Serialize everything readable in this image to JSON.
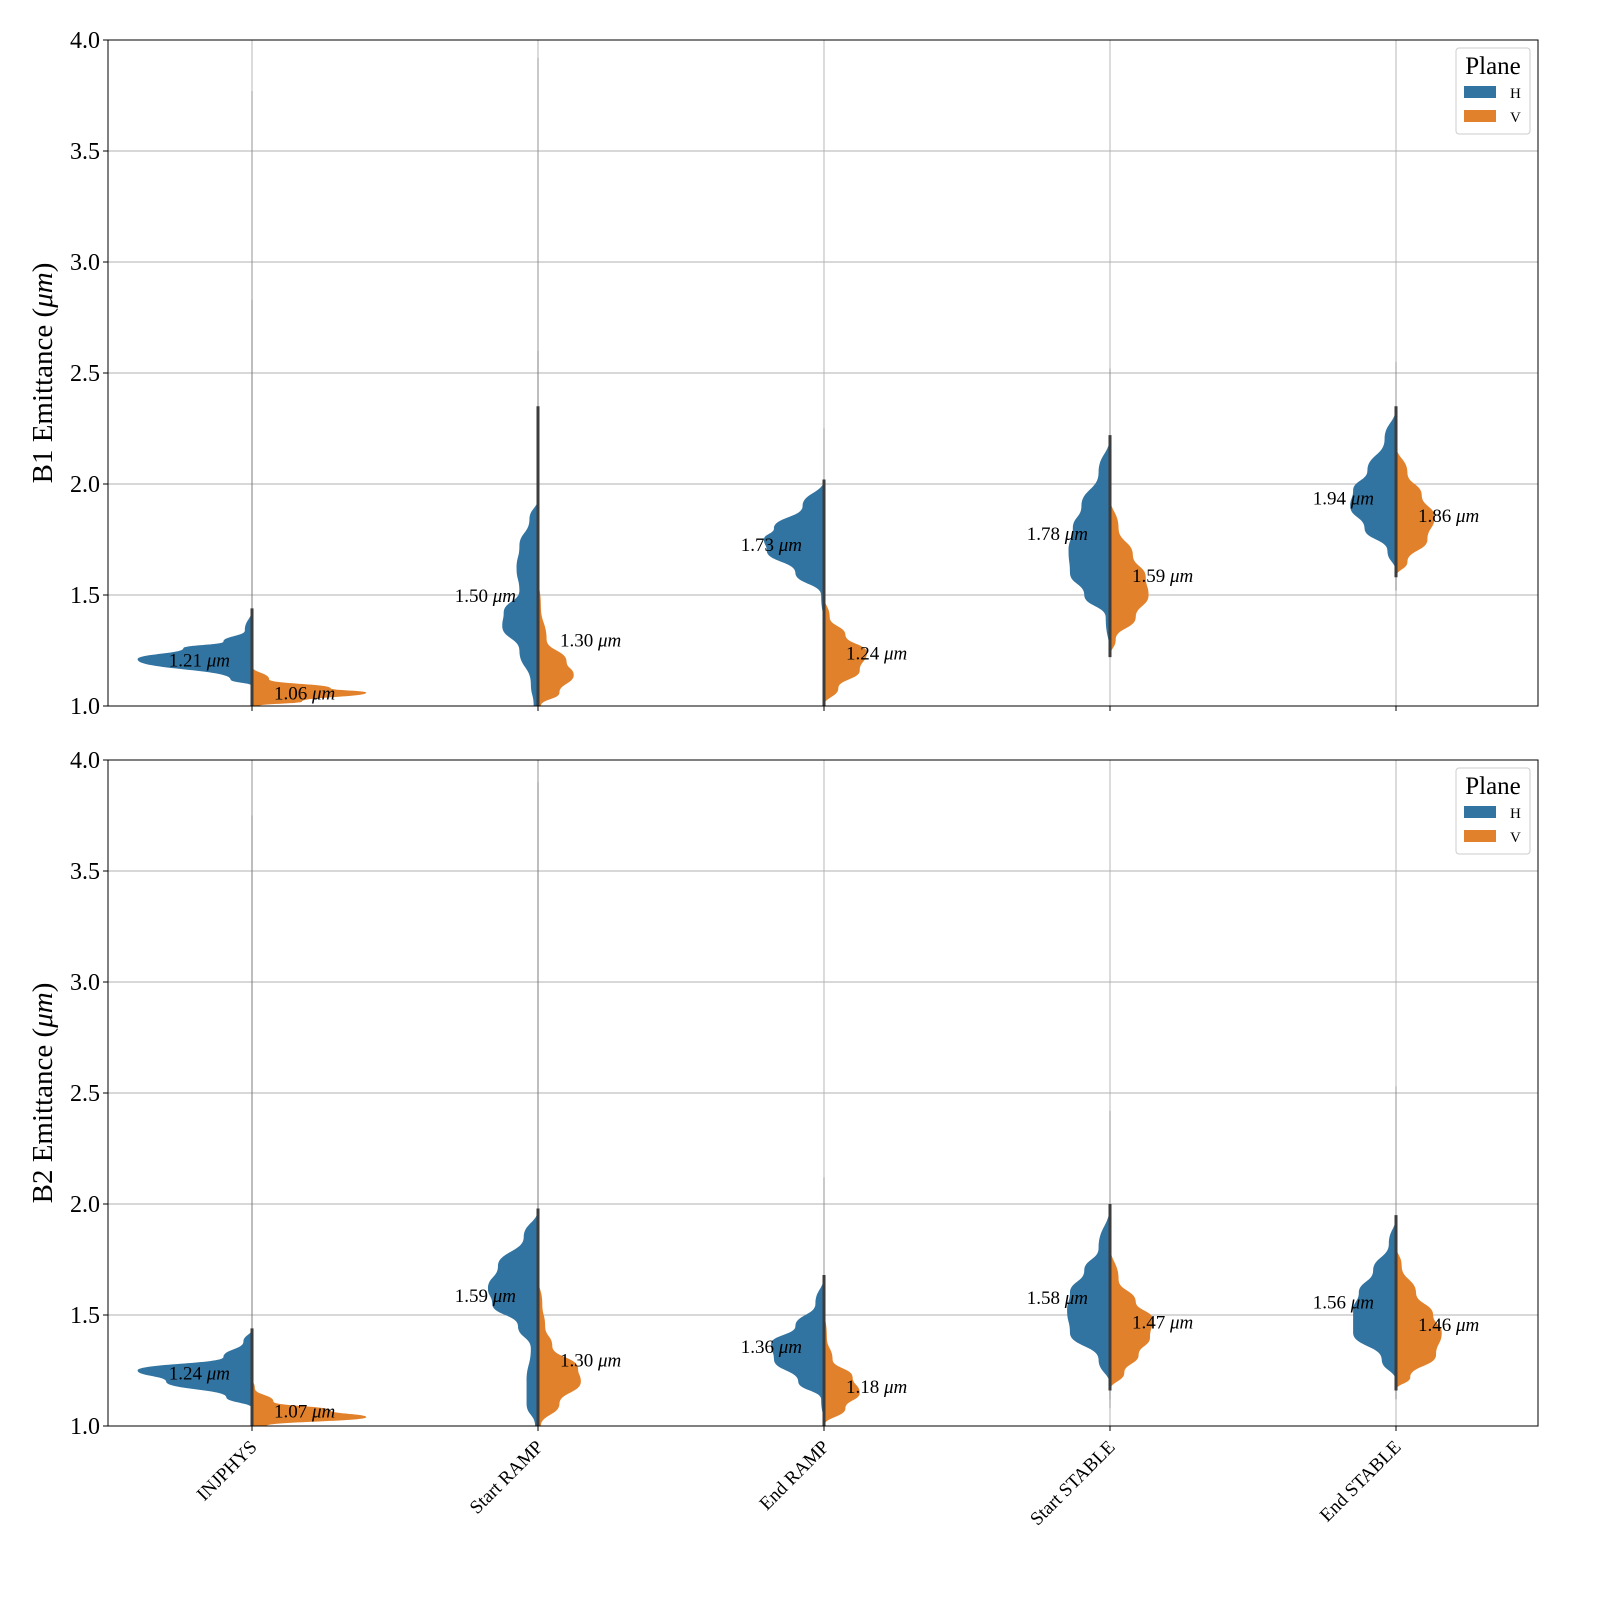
{
  "chart_data": [
    {
      "type": "violin",
      "subtype": "split-violin",
      "ylabel_prefix": "B1 Emittance",
      "ylabel_unit": "μm",
      "ylim": [
        1.0,
        4.0
      ],
      "yticks": [
        "1.0",
        "1.5",
        "2.0",
        "2.5",
        "3.0",
        "3.5",
        "4.0"
      ],
      "ytick_values": [
        1.0,
        1.5,
        2.0,
        2.5,
        3.0,
        3.5,
        4.0
      ],
      "grid": true,
      "categories": [
        "INJPHYS",
        "Start RAMP",
        "End RAMP",
        "Start STABLE",
        "End STABLE"
      ],
      "show_xtick_labels": false,
      "legend": {
        "title": "Plane",
        "placement": "top-right",
        "entries": [
          "H",
          "V"
        ]
      },
      "series": [
        {
          "name": "H",
          "color": "#3274a1",
          "medians": [
            1.21,
            1.5,
            1.73,
            1.78,
            1.94
          ],
          "annotations": [
            "1.21 μm",
            "1.50 μm",
            "1.73 μm",
            "1.78 μm",
            "1.94 μm"
          ],
          "ranges": [
            [
              1.0,
              3.77
            ],
            [
              1.0,
              3.92
            ],
            [
              1.0,
              2.25
            ],
            [
              1.22,
              2.52
            ],
            [
              1.52,
              2.55
            ]
          ],
          "density": [
            [
              [
                1.0,
                0.0
              ],
              [
                1.09,
                0.0
              ],
              [
                1.12,
                0.15
              ],
              [
                1.21,
                0.8
              ],
              [
                1.26,
                0.48
              ],
              [
                1.29,
                0.2
              ],
              [
                1.34,
                0.05
              ],
              [
                1.44,
                0.0
              ]
            ],
            [
              [
                1.0,
                0.03
              ],
              [
                1.1,
                0.05
              ],
              [
                1.25,
                0.13
              ],
              [
                1.36,
                0.25
              ],
              [
                1.42,
                0.24
              ],
              [
                1.52,
                0.13
              ],
              [
                1.62,
                0.15
              ],
              [
                1.72,
                0.13
              ],
              [
                1.84,
                0.06
              ],
              [
                1.94,
                0.0
              ]
            ],
            [
              [
                1.35,
                0.0
              ],
              [
                1.5,
                0.02
              ],
              [
                1.6,
                0.2
              ],
              [
                1.7,
                0.4
              ],
              [
                1.75,
                0.42
              ],
              [
                1.8,
                0.35
              ],
              [
                1.9,
                0.15
              ],
              [
                2.02,
                0.0
              ]
            ],
            [
              [
                1.22,
                0.0
              ],
              [
                1.4,
                0.03
              ],
              [
                1.5,
                0.18
              ],
              [
                1.6,
                0.28
              ],
              [
                1.7,
                0.29
              ],
              [
                1.8,
                0.26
              ],
              [
                1.9,
                0.2
              ],
              [
                2.05,
                0.08
              ],
              [
                2.22,
                0.0
              ]
            ],
            [
              [
                1.6,
                0.0
              ],
              [
                1.7,
                0.06
              ],
              [
                1.8,
                0.22
              ],
              [
                1.9,
                0.32
              ],
              [
                1.97,
                0.3
              ],
              [
                2.06,
                0.2
              ],
              [
                2.2,
                0.08
              ],
              [
                2.35,
                0.0
              ]
            ]
          ]
        },
        {
          "name": "V",
          "color": "#e1812c",
          "medians": [
            1.06,
            1.3,
            1.24,
            1.59,
            1.86
          ],
          "annotations": [
            "1.06 μm",
            "1.30 μm",
            "1.24 μm",
            "1.59 μm",
            "1.86 μm"
          ],
          "ranges": [
            [
              1.0,
              2.83
            ],
            [
              1.0,
              2.6
            ],
            [
              1.0,
              1.5
            ],
            [
              1.22,
              2.0
            ],
            [
              1.52,
              2.2
            ]
          ],
          "density": [
            [
              [
                1.0,
                0.05
              ],
              [
                1.02,
                0.35
              ],
              [
                1.06,
                0.8
              ],
              [
                1.08,
                0.55
              ],
              [
                1.12,
                0.12
              ],
              [
                1.18,
                0.0
              ]
            ],
            [
              [
                1.0,
                0.02
              ],
              [
                1.06,
                0.15
              ],
              [
                1.14,
                0.25
              ],
              [
                1.2,
                0.2
              ],
              [
                1.3,
                0.06
              ],
              [
                1.45,
                0.02
              ],
              [
                1.6,
                0.0
              ],
              [
                2.0,
                0.01
              ],
              [
                2.35,
                0.0
              ]
            ],
            [
              [
                1.0,
                0.0
              ],
              [
                1.08,
                0.1
              ],
              [
                1.16,
                0.25
              ],
              [
                1.24,
                0.3
              ],
              [
                1.32,
                0.15
              ],
              [
                1.4,
                0.04
              ],
              [
                1.5,
                0.0
              ]
            ],
            [
              [
                1.22,
                0.0
              ],
              [
                1.3,
                0.04
              ],
              [
                1.4,
                0.18
              ],
              [
                1.5,
                0.27
              ],
              [
                1.58,
                0.25
              ],
              [
                1.68,
                0.16
              ],
              [
                1.8,
                0.06
              ],
              [
                1.95,
                0.0
              ]
            ],
            [
              [
                1.58,
                0.0
              ],
              [
                1.65,
                0.08
              ],
              [
                1.75,
                0.22
              ],
              [
                1.85,
                0.27
              ],
              [
                1.95,
                0.18
              ],
              [
                2.05,
                0.08
              ],
              [
                2.18,
                0.0
              ]
            ]
          ]
        }
      ]
    },
    {
      "type": "violin",
      "subtype": "split-violin",
      "ylabel_prefix": "B2 Emittance",
      "ylabel_unit": "μm",
      "ylim": [
        1.0,
        4.0
      ],
      "yticks": [
        "1.0",
        "1.5",
        "2.0",
        "2.5",
        "3.0",
        "3.5",
        "4.0"
      ],
      "ytick_values": [
        1.0,
        1.5,
        2.0,
        2.5,
        3.0,
        3.5,
        4.0
      ],
      "grid": true,
      "categories": [
        "INJPHYS",
        "Start RAMP",
        "End RAMP",
        "Start STABLE",
        "End STABLE"
      ],
      "show_xtick_labels": true,
      "legend": {
        "title": "Plane",
        "placement": "top-right",
        "entries": [
          "H",
          "V"
        ]
      },
      "series": [
        {
          "name": "H",
          "color": "#3274a1",
          "medians": [
            1.24,
            1.59,
            1.36,
            1.58,
            1.56
          ],
          "annotations": [
            "1.24 μm",
            "1.59 μm",
            "1.36 μm",
            "1.58 μm",
            "1.56 μm"
          ],
          "ranges": [
            [
              1.0,
              4.0
            ],
            [
              1.0,
              4.0
            ],
            [
              1.0,
              2.12
            ],
            [
              1.08,
              2.42
            ],
            [
              1.12,
              2.53
            ]
          ],
          "density": [
            [
              [
                1.0,
                0.0
              ],
              [
                1.08,
                0.0
              ],
              [
                1.13,
                0.18
              ],
              [
                1.2,
                0.6
              ],
              [
                1.25,
                0.8
              ],
              [
                1.31,
                0.2
              ],
              [
                1.38,
                0.06
              ],
              [
                1.44,
                0.0
              ]
            ],
            [
              [
                1.0,
                0.02
              ],
              [
                1.1,
                0.08
              ],
              [
                1.2,
                0.08
              ],
              [
                1.35,
                0.05
              ],
              [
                1.45,
                0.14
              ],
              [
                1.55,
                0.32
              ],
              [
                1.62,
                0.35
              ],
              [
                1.72,
                0.28
              ],
              [
                1.85,
                0.1
              ],
              [
                1.98,
                0.0
              ]
            ],
            [
              [
                1.0,
                0.0
              ],
              [
                1.12,
                0.02
              ],
              [
                1.2,
                0.18
              ],
              [
                1.3,
                0.35
              ],
              [
                1.37,
                0.37
              ],
              [
                1.45,
                0.2
              ],
              [
                1.55,
                0.06
              ],
              [
                1.68,
                0.0
              ]
            ],
            [
              [
                1.18,
                0.0
              ],
              [
                1.3,
                0.08
              ],
              [
                1.42,
                0.28
              ],
              [
                1.52,
                0.3
              ],
              [
                1.6,
                0.28
              ],
              [
                1.7,
                0.18
              ],
              [
                1.8,
                0.08
              ],
              [
                2.0,
                0.0
              ]
            ],
            [
              [
                1.2,
                0.0
              ],
              [
                1.3,
                0.1
              ],
              [
                1.42,
                0.3
              ],
              [
                1.52,
                0.3
              ],
              [
                1.6,
                0.26
              ],
              [
                1.7,
                0.16
              ],
              [
                1.82,
                0.05
              ],
              [
                1.95,
                0.0
              ]
            ]
          ]
        },
        {
          "name": "V",
          "color": "#e1812c",
          "medians": [
            1.07,
            1.3,
            1.18,
            1.47,
            1.46
          ],
          "annotations": [
            "1.07 μm",
            "1.30 μm",
            "1.18 μm",
            "1.47 μm",
            "1.46 μm"
          ],
          "ranges": [
            [
              1.0,
              3.75
            ],
            [
              1.0,
              3.9
            ],
            [
              1.0,
              1.68
            ],
            [
              1.12,
              1.85
            ],
            [
              1.12,
              1.75
            ]
          ],
          "density": [
            [
              [
                1.0,
                0.1
              ],
              [
                1.04,
                0.8
              ],
              [
                1.07,
                0.55
              ],
              [
                1.11,
                0.15
              ],
              [
                1.17,
                0.02
              ],
              [
                1.22,
                0.0
              ]
            ],
            [
              [
                1.0,
                0.02
              ],
              [
                1.1,
                0.15
              ],
              [
                1.2,
                0.3
              ],
              [
                1.26,
                0.28
              ],
              [
                1.36,
                0.1
              ],
              [
                1.45,
                0.05
              ],
              [
                1.55,
                0.03
              ],
              [
                1.68,
                0.0
              ]
            ],
            [
              [
                1.0,
                0.0
              ],
              [
                1.08,
                0.15
              ],
              [
                1.15,
                0.25
              ],
              [
                1.22,
                0.2
              ],
              [
                1.3,
                0.06
              ],
              [
                1.4,
                0.02
              ],
              [
                1.55,
                0.0
              ]
            ],
            [
              [
                1.16,
                0.0
              ],
              [
                1.24,
                0.1
              ],
              [
                1.32,
                0.2
              ],
              [
                1.4,
                0.28
              ],
              [
                1.48,
                0.3
              ],
              [
                1.56,
                0.18
              ],
              [
                1.66,
                0.06
              ],
              [
                1.82,
                0.0
              ]
            ],
            [
              [
                1.16,
                0.0
              ],
              [
                1.22,
                0.1
              ],
              [
                1.32,
                0.28
              ],
              [
                1.42,
                0.32
              ],
              [
                1.5,
                0.26
              ],
              [
                1.6,
                0.14
              ],
              [
                1.72,
                0.04
              ],
              [
                1.82,
                0.0
              ]
            ]
          ]
        }
      ]
    }
  ]
}
